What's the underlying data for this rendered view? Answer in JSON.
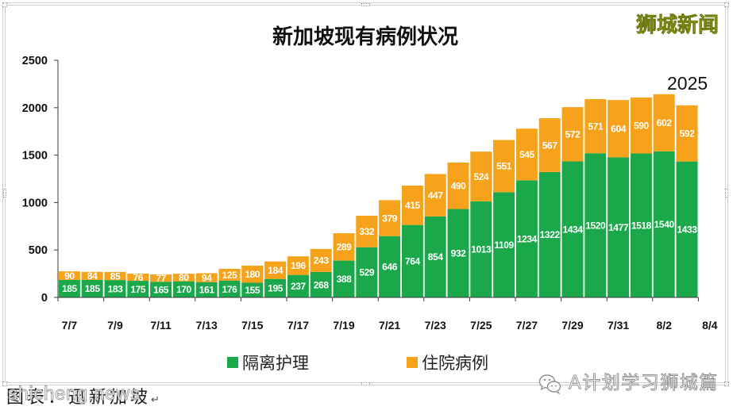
{
  "watermark": {
    "top_right": "狮城新闻",
    "site": "shicheng.news"
  },
  "chart_data": {
    "type": "bar",
    "stacked": true,
    "title": "新加坡现有病例状况",
    "x_tick_labels": [
      "7/7",
      "7/9",
      "7/11",
      "7/13",
      "7/15",
      "7/17",
      "7/19",
      "7/21",
      "7/23",
      "7/25",
      "7/27",
      "7/29",
      "7/31",
      "8/2",
      "8/4"
    ],
    "y_ticks": [
      0,
      500,
      1000,
      1500,
      2000,
      2500
    ],
    "ylim": [
      0,
      2500
    ],
    "grid": false,
    "legend": "bottom",
    "data_labels": true,
    "series": [
      {
        "name": "隔离护理",
        "color": "#1aa84b",
        "values": [
          185,
          185,
          183,
          175,
          165,
          170,
          161,
          176,
          155,
          195,
          237,
          268,
          388,
          529,
          646,
          764,
          854,
          932,
          1013,
          1109,
          1234,
          1322,
          1434,
          1520,
          1477,
          1518,
          1540,
          1433
        ]
      },
      {
        "name": "住院病例",
        "color": "#f7a21b",
        "values": [
          90,
          84,
          85,
          76,
          77,
          80,
          94,
          125,
          180,
          184,
          196,
          243,
          289,
          332,
          379,
          415,
          447,
          490,
          524,
          551,
          545,
          567,
          572,
          571,
          604,
          590,
          602,
          592
        ]
      }
    ],
    "annotations": [
      {
        "text": "2025"
      }
    ]
  },
  "footer": {
    "caption": "图表：迅新加坡",
    "return_mark": "↵",
    "account": "A计划学习狮城篇",
    "account_icon": "wechat-icon"
  }
}
